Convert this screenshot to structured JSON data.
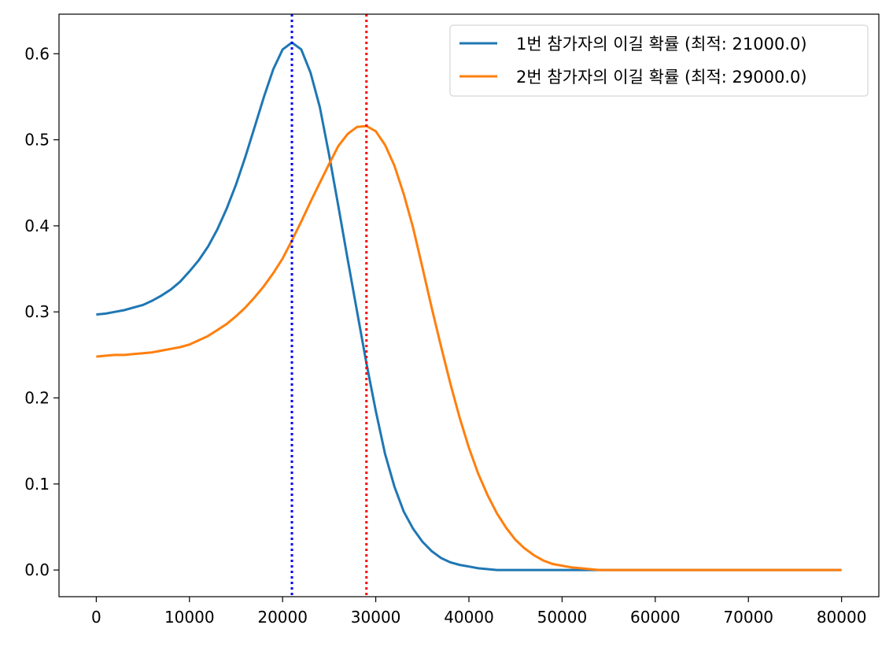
{
  "chart_data": {
    "type": "line",
    "title": "",
    "xlabel": "",
    "ylabel": "",
    "xlim": [
      -4000,
      84000
    ],
    "ylim": [
      -0.031,
      0.646
    ],
    "xticks": [
      0,
      10000,
      20000,
      30000,
      40000,
      50000,
      60000,
      70000,
      80000
    ],
    "xtick_labels": [
      "0",
      "10000",
      "20000",
      "30000",
      "40000",
      "50000",
      "60000",
      "70000",
      "80000"
    ],
    "yticks": [
      0.0,
      0.1,
      0.2,
      0.3,
      0.4,
      0.5,
      0.6
    ],
    "ytick_labels": [
      "0.0",
      "0.1",
      "0.2",
      "0.3",
      "0.4",
      "0.5",
      "0.6"
    ],
    "grid": false,
    "legend_position": "top-right",
    "x": [
      0,
      1000,
      2000,
      3000,
      4000,
      5000,
      6000,
      7000,
      8000,
      9000,
      10000,
      11000,
      12000,
      13000,
      14000,
      15000,
      16000,
      17000,
      18000,
      19000,
      20000,
      21000,
      22000,
      23000,
      24000,
      25000,
      26000,
      27000,
      28000,
      29000,
      30000,
      31000,
      32000,
      33000,
      34000,
      35000,
      36000,
      37000,
      38000,
      39000,
      40000,
      41000,
      42000,
      43000,
      44000,
      45000,
      46000,
      47000,
      48000,
      49000,
      50000,
      51000,
      52000,
      53000,
      54000,
      55000,
      56000,
      57000,
      58000,
      59000,
      60000,
      61000,
      62000,
      63000,
      64000,
      65000,
      66000,
      67000,
      68000,
      69000,
      70000,
      71000,
      72000,
      73000,
      74000,
      75000,
      76000,
      77000,
      78000,
      79000,
      80000
    ],
    "series": [
      {
        "name": "1번 참가자의 이길 확률 (최적: 21000.0)",
        "color": "#1f77b4",
        "values": [
          0.297,
          0.298,
          0.3,
          0.302,
          0.305,
          0.308,
          0.313,
          0.319,
          0.326,
          0.335,
          0.347,
          0.36,
          0.376,
          0.396,
          0.42,
          0.448,
          0.48,
          0.515,
          0.55,
          0.582,
          0.605,
          0.613,
          0.605,
          0.578,
          0.538,
          0.482,
          0.422,
          0.36,
          0.3,
          0.24,
          0.185,
          0.135,
          0.097,
          0.068,
          0.048,
          0.033,
          0.022,
          0.014,
          0.009,
          0.006,
          0.004,
          0.002,
          0.001,
          0,
          0,
          0,
          0,
          0,
          0,
          0,
          0,
          0,
          0,
          0,
          0,
          0,
          0,
          0,
          0,
          0,
          0,
          0,
          0,
          0,
          0,
          0,
          0,
          0,
          0,
          0,
          0,
          0,
          0,
          0,
          0,
          0,
          0,
          0,
          0,
          0,
          0
        ]
      },
      {
        "name": "2번 참가자의 이길 확률 (최적: 29000.0)",
        "color": "#ff7f0e",
        "values": [
          0.248,
          0.249,
          0.25,
          0.25,
          0.251,
          0.252,
          0.253,
          0.255,
          0.257,
          0.259,
          0.262,
          0.267,
          0.272,
          0.279,
          0.286,
          0.295,
          0.305,
          0.317,
          0.33,
          0.345,
          0.362,
          0.383,
          0.405,
          0.428,
          0.45,
          0.472,
          0.493,
          0.507,
          0.515,
          0.516,
          0.51,
          0.494,
          0.47,
          0.437,
          0.398,
          0.352,
          0.305,
          0.26,
          0.217,
          0.177,
          0.142,
          0.112,
          0.087,
          0.066,
          0.049,
          0.035,
          0.025,
          0.017,
          0.011,
          0.007,
          0.005,
          0.003,
          0.002,
          0.001,
          0,
          0,
          0,
          0,
          0,
          0,
          0,
          0,
          0,
          0,
          0,
          0,
          0,
          0,
          0,
          0,
          0,
          0,
          0,
          0,
          0,
          0,
          0,
          0,
          0,
          0,
          0
        ]
      }
    ],
    "vlines": [
      {
        "x": 21000,
        "color": "#0000ff",
        "style": "dotted"
      },
      {
        "x": 29000,
        "color": "#ff0000",
        "style": "dotted"
      }
    ]
  }
}
